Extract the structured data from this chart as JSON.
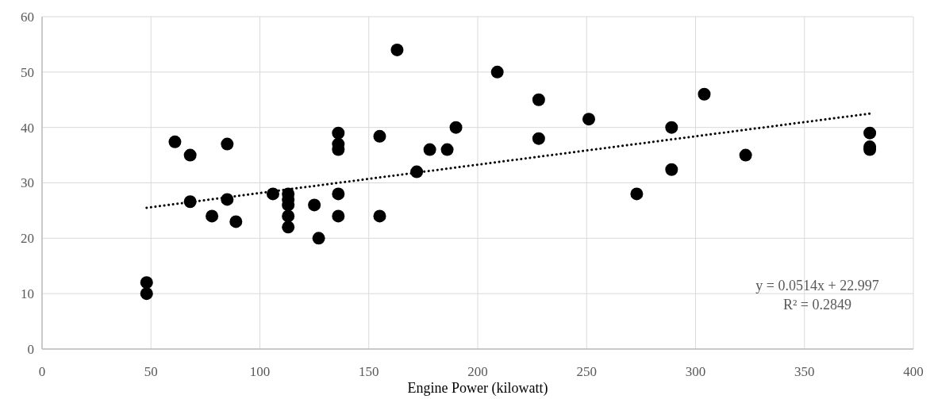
{
  "chart_data": {
    "type": "scatter",
    "xlabel": "Engine Power (kilowatt)",
    "xlim": [
      0,
      400
    ],
    "xticks": [
      0,
      50,
      100,
      150,
      200,
      250,
      300,
      350,
      400
    ],
    "ylim": [
      0,
      60
    ],
    "yticks": [
      0,
      10,
      20,
      30,
      40,
      50,
      60
    ],
    "grid": true,
    "marker": "circle",
    "series": [
      {
        "color": "#000000",
        "x": [
          48,
          48,
          61,
          68,
          68,
          78,
          85,
          85,
          89,
          106,
          113,
          113,
          113,
          113,
          113,
          125,
          127,
          136,
          136,
          136,
          136,
          136,
          155,
          155,
          163,
          172,
          178,
          186,
          190,
          209,
          228,
          228,
          251,
          273,
          289,
          289,
          304,
          323,
          380,
          380,
          380
        ],
        "values": [
          12,
          10,
          37.4,
          35,
          26.6,
          24,
          37,
          27,
          23,
          28,
          28,
          27,
          26,
          24,
          22,
          26,
          20,
          39,
          37,
          36,
          28,
          24,
          38.4,
          24,
          54,
          32,
          36,
          36,
          40,
          50,
          45,
          38,
          41.5,
          28,
          40,
          32.4,
          46,
          35,
          39,
          36.5,
          36
        ]
      },
      {
        "type": "line",
        "color": "#000000",
        "marker": "none",
        "line_style": "dotted",
        "x": [
          48,
          380
        ],
        "values": [
          25.5,
          42.5
        ]
      }
    ],
    "annotations": [
      "y = 0.0514x + 22.997",
      "R² = 0.2849"
    ]
  }
}
